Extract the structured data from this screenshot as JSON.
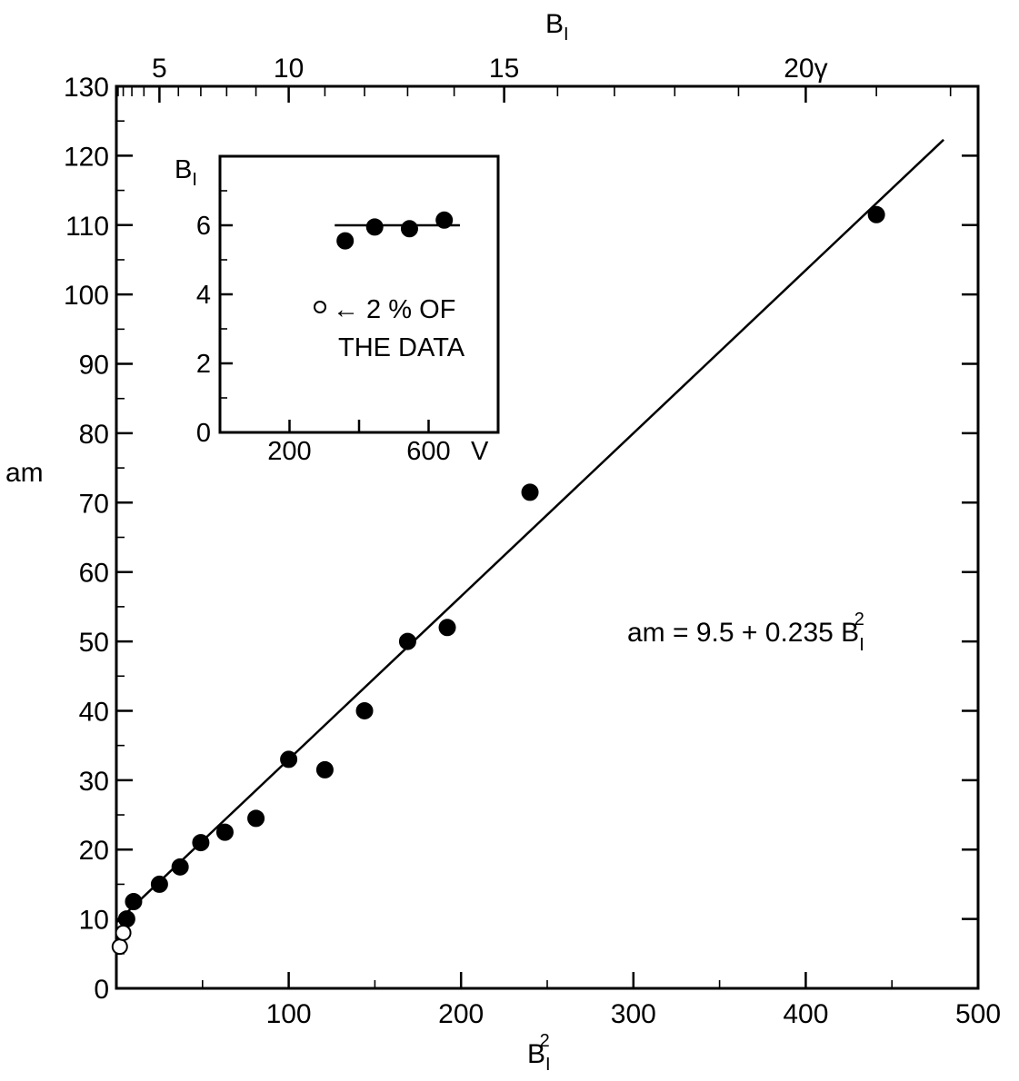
{
  "chart_data": [
    {
      "type": "scatter",
      "title": "",
      "xlabel": "B",
      "xlabel_sub": "I",
      "xlabel_sup": "2",
      "ylabel": "am",
      "x2label": "B",
      "x2label_sub": "I",
      "xlim": [
        0,
        500
      ],
      "ylim": [
        0,
        130
      ],
      "x_ticks": [
        "100",
        "200",
        "300",
        "400",
        "500"
      ],
      "y_ticks": [
        "0",
        "10",
        "20",
        "30",
        "40",
        "50",
        "60",
        "70",
        "80",
        "90",
        "100",
        "110",
        "120",
        "130"
      ],
      "x2_ticks": [
        "5",
        "10",
        "15",
        "20γ"
      ],
      "x2_tick_values": [
        5,
        10,
        15,
        20
      ],
      "grid": false,
      "annotation": {
        "text": "am = 9.5 + 0.235 B",
        "sub": "I",
        "sup": "2"
      },
      "fit_line": {
        "intercept": 9.5,
        "slope": 0.235,
        "x_range": [
          0,
          480
        ]
      },
      "series": [
        {
          "marker": "filled",
          "x": [
            6,
            10,
            25,
            37,
            49,
            63,
            81,
            100,
            121,
            144,
            169,
            192,
            240,
            441
          ],
          "y": [
            10,
            12.5,
            15,
            17.5,
            21,
            22.5,
            24.5,
            33,
            31.5,
            40,
            50,
            52,
            71.5,
            111.5
          ]
        },
        {
          "marker": "open",
          "x": [
            2,
            4
          ],
          "y": [
            6,
            8
          ]
        }
      ]
    },
    {
      "type": "scatter",
      "title": "",
      "xlabel": "V",
      "ylabel": "B",
      "ylabel_sub": "I",
      "xlim": [
        0,
        800
      ],
      "ylim": [
        0,
        8
      ],
      "x_ticks": [
        "200",
        "600"
      ],
      "x_tick_values": [
        200,
        600
      ],
      "y_ticks": [
        "0",
        "2",
        "4",
        "6"
      ],
      "y_tick_values": [
        0,
        2,
        4,
        6
      ],
      "grid": false,
      "reference_line": {
        "y": 6,
        "x_range": [
          330,
          690
        ]
      },
      "legend_note": {
        "line1": "← 2 % OF",
        "line2": "THE DATA"
      },
      "series": [
        {
          "marker": "filled",
          "x": [
            360,
            445,
            545,
            645
          ],
          "y": [
            5.55,
            5.95,
            5.9,
            6.15
          ]
        }
      ]
    }
  ]
}
